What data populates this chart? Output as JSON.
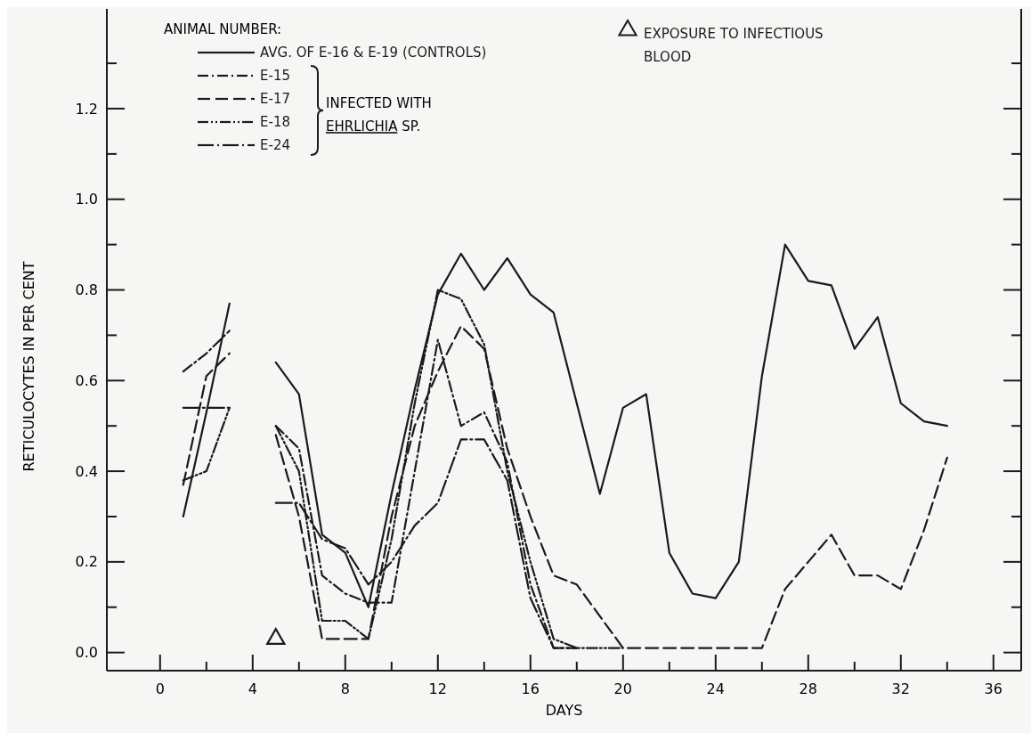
{
  "chart_data": {
    "type": "line",
    "xlabel": "DAYS",
    "ylabel": "RETICULOCYTES IN PER CENT",
    "legend_title": "ANIMAL NUMBER:",
    "xlim": [
      -2.3,
      37.2
    ],
    "ylim": [
      -0.04,
      1.42
    ],
    "xticks": [
      0,
      {
        "value": 2,
        "label": null
      },
      4,
      {
        "value": 6,
        "label": null
      },
      8,
      {
        "value": 10,
        "label": null
      },
      12,
      {
        "value": 14,
        "label": null
      },
      16,
      {
        "value": 18,
        "label": null
      },
      20,
      {
        "value": 22,
        "label": null
      },
      24,
      {
        "value": 26,
        "label": null
      },
      28,
      {
        "value": 30,
        "label": null
      },
      32,
      {
        "value": 34,
        "label": null
      },
      36
    ],
    "yticks": [
      {
        "value": 0,
        "label": "0.0"
      },
      {
        "value": 0.1,
        "label": null
      },
      0.2,
      {
        "value": 0.3,
        "label": null
      },
      0.4,
      {
        "value": 0.5,
        "label": null
      },
      0.6,
      {
        "value": 0.7,
        "label": null
      },
      0.8,
      {
        "value": 0.9,
        "label": null
      },
      {
        "value": 1,
        "label": "1.0"
      },
      {
        "value": 1.1,
        "label": null
      },
      1.2,
      {
        "value": 1.3,
        "label": null
      }
    ],
    "legend": "top",
    "grid": false,
    "marker": "none",
    "annotations": [
      "INFECTED WITH EHRLICHIA SP."
    ],
    "series": [
      {
        "name": "AVG. OF E-16 & E-19 (CONTROLS)",
        "color": "#1a1a1a",
        "line_style": "solid",
        "x": [
          1,
          2,
          3,
          4,
          5,
          6,
          7,
          8,
          9,
          10,
          11,
          12,
          13,
          14,
          15,
          16,
          17,
          18,
          19,
          20,
          21,
          22,
          23,
          24,
          25,
          26,
          27,
          28,
          29,
          30,
          31,
          32,
          33,
          34
        ],
        "values": [
          0.3,
          0.53,
          0.77,
          null,
          0.64,
          0.57,
          0.26,
          0.22,
          0.1,
          0.35,
          0.58,
          0.79,
          0.88,
          0.8,
          0.87,
          0.79,
          0.75,
          0.55,
          0.35,
          0.54,
          0.57,
          0.22,
          0.13,
          0.12,
          0.2,
          0.61,
          0.9,
          0.82,
          0.81,
          0.67,
          0.74,
          0.55,
          0.51,
          0.5
        ]
      },
      {
        "name": "E-15",
        "color": "#1a1a1a",
        "line_style": "dashdot",
        "x": [
          1,
          2,
          3,
          4,
          5,
          6,
          7,
          8,
          9,
          10,
          11,
          12,
          13,
          14,
          15,
          16,
          17,
          18
        ],
        "values": [
          0.62,
          0.66,
          0.71,
          null,
          0.5,
          0.45,
          0.17,
          0.13,
          0.11,
          0.11,
          0.4,
          0.69,
          0.5,
          0.53,
          0.42,
          0.15,
          0.01,
          0.01
        ]
      },
      {
        "name": "E-17",
        "color": "#1a1a1a",
        "line_style": "dashed",
        "x": [
          1,
          2,
          3,
          4,
          5,
          6,
          7,
          8,
          9,
          10,
          11,
          12,
          13,
          14,
          15,
          16,
          17,
          18,
          19,
          20,
          21,
          22,
          23,
          24,
          25,
          26,
          27,
          28,
          29,
          30,
          31,
          32,
          33,
          34
        ],
        "values": [
          0.37,
          0.61,
          0.66,
          null,
          0.48,
          0.3,
          0.03,
          0.03,
          0.03,
          0.3,
          0.5,
          0.62,
          0.72,
          0.67,
          0.45,
          0.3,
          0.17,
          0.15,
          0.08,
          0.01,
          0.01,
          0.01,
          0.01,
          0.01,
          0.01,
          0.01,
          0.14,
          0.2,
          0.26,
          0.17,
          0.17,
          0.14,
          0.27,
          0.43
        ]
      },
      {
        "name": "E-18",
        "color": "#1a1a1a",
        "line_style": "dashdotdot",
        "x": [
          1,
          2,
          3,
          4,
          5,
          6,
          7,
          8,
          9,
          10,
          11,
          12,
          13,
          14,
          15,
          16,
          17,
          18,
          19,
          20
        ],
        "values": [
          0.38,
          0.4,
          0.54,
          null,
          0.5,
          0.4,
          0.07,
          0.07,
          0.03,
          0.25,
          0.55,
          0.8,
          0.78,
          0.68,
          0.4,
          0.2,
          0.03,
          0.01,
          0.01,
          0.01
        ]
      },
      {
        "name": "E-24",
        "color": "#1a1a1a",
        "line_style": "longdashdot",
        "x": [
          1,
          2,
          3,
          4,
          5,
          6,
          7,
          8,
          9,
          10,
          11,
          12,
          13,
          14,
          15,
          16,
          17,
          18
        ],
        "values": [
          0.54,
          0.54,
          0.54,
          null,
          0.33,
          0.33,
          0.25,
          0.23,
          0.15,
          0.2,
          0.28,
          0.33,
          0.47,
          0.47,
          0.38,
          0.12,
          0.01,
          0.01
        ]
      },
      {
        "name": "EXPOSURE TO INFECTIOUS BLOOD",
        "type": "scatter",
        "marker": "triangle",
        "color": "#1a1a1a",
        "x": [
          5
        ],
        "values": [
          0.03
        ]
      }
    ]
  }
}
